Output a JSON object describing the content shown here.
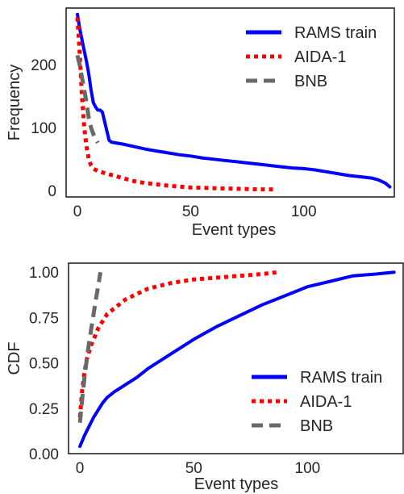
{
  "chart_data": [
    {
      "type": "line",
      "title": "",
      "xlabel": "Event types",
      "ylabel": "Frequency",
      "xlim": [
        -5,
        140
      ],
      "ylim": [
        -10,
        290
      ],
      "xticks": [
        0,
        50,
        100
      ],
      "yticks": [
        0,
        100,
        200
      ],
      "grid": false,
      "legend_position": "top-right",
      "series": [
        {
          "name": "RAMS train",
          "color": "#0000ff",
          "style": "solid",
          "x": [
            0,
            1,
            2,
            3,
            4,
            5,
            6,
            7,
            8,
            9,
            10,
            11,
            12,
            13,
            14,
            15,
            20,
            25,
            30,
            35,
            40,
            45,
            50,
            55,
            60,
            65,
            70,
            75,
            80,
            85,
            90,
            95,
            100,
            105,
            110,
            115,
            120,
            125,
            130,
            133,
            136,
            138
          ],
          "y": [
            280,
            258,
            240,
            222,
            205,
            185,
            160,
            140,
            133,
            128,
            128,
            125,
            110,
            95,
            80,
            77,
            74,
            70,
            66,
            63,
            60,
            57,
            55,
            52,
            50,
            48,
            46,
            44,
            42,
            40,
            38,
            36,
            35,
            33,
            30,
            27,
            24,
            22,
            20,
            17,
            12,
            6
          ]
        },
        {
          "name": "AIDA-1",
          "color": "#ff0000",
          "style": "dotted",
          "x": [
            0,
            1,
            2,
            3,
            4,
            5,
            6,
            7,
            8,
            10,
            15,
            20,
            25,
            30,
            40,
            50,
            60,
            70,
            80,
            87
          ],
          "y": [
            275,
            220,
            150,
            100,
            70,
            50,
            40,
            35,
            33,
            30,
            25,
            20,
            15,
            12,
            8,
            5,
            4,
            3,
            2,
            2
          ]
        },
        {
          "name": "BNB",
          "color": "#696969",
          "style": "dashed",
          "x": [
            0,
            1,
            2,
            3,
            4,
            5,
            6,
            7,
            8,
            9
          ],
          "y": [
            215,
            200,
            180,
            160,
            140,
            115,
            100,
            90,
            82,
            76
          ]
        }
      ]
    },
    {
      "type": "line",
      "title": "",
      "xlabel": "Event types",
      "ylabel": "CDF",
      "xlim": [
        -5,
        142
      ],
      "ylim": [
        0,
        1.05
      ],
      "xticks": [
        0,
        50,
        100
      ],
      "yticks": [
        0.0,
        0.25,
        0.5,
        0.75,
        1.0
      ],
      "ytick_labels": [
        "0.00",
        "0.25",
        "0.50",
        "0.75",
        "1.00"
      ],
      "grid": false,
      "legend_position": "bottom-right",
      "series": [
        {
          "name": "RAMS train",
          "color": "#0000ff",
          "style": "solid",
          "x": [
            0,
            2,
            4,
            6,
            8,
            10,
            12,
            15,
            20,
            25,
            30,
            40,
            50,
            60,
            70,
            80,
            90,
            100,
            110,
            120,
            130,
            138
          ],
          "y": [
            0.04,
            0.1,
            0.15,
            0.2,
            0.24,
            0.28,
            0.31,
            0.34,
            0.38,
            0.42,
            0.47,
            0.55,
            0.63,
            0.7,
            0.76,
            0.82,
            0.87,
            0.92,
            0.95,
            0.98,
            0.99,
            1.0
          ]
        },
        {
          "name": "AIDA-1",
          "color": "#ff0000",
          "style": "dotted",
          "x": [
            0,
            1,
            2,
            3,
            4,
            5,
            6,
            7,
            8,
            10,
            12,
            15,
            20,
            25,
            30,
            40,
            50,
            60,
            70,
            80,
            87
          ],
          "y": [
            0.2,
            0.35,
            0.45,
            0.52,
            0.56,
            0.6,
            0.63,
            0.66,
            0.69,
            0.73,
            0.77,
            0.8,
            0.85,
            0.88,
            0.91,
            0.94,
            0.96,
            0.97,
            0.98,
            0.99,
            1.0
          ]
        },
        {
          "name": "BNB",
          "color": "#696969",
          "style": "dashed",
          "x": [
            0,
            1,
            2,
            3,
            4,
            5,
            6,
            7,
            8,
            9
          ],
          "y": [
            0.17,
            0.3,
            0.42,
            0.52,
            0.61,
            0.69,
            0.77,
            0.85,
            0.92,
            1.0
          ]
        }
      ]
    }
  ]
}
